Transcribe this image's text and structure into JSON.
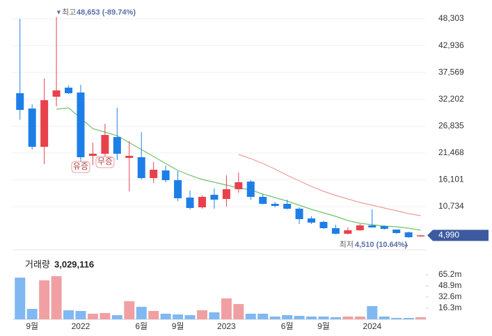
{
  "chart_data": [
    {
      "type": "candlestick",
      "open": [
        33418,
        30356,
        22705,
        32722,
        34530,
        33557,
        20896,
        21314,
        24653,
        20479,
        20618,
        16444,
        17974,
        16027,
        12548,
        10600,
        13105,
        12270,
        14218,
        15748,
        12687,
        11296,
        11296,
        10322,
        8374,
        7679,
        6427,
        5313,
        6009,
        6983,
        6844,
        6148,
        5592,
        4800
      ],
      "high": [
        48300,
        31190,
        36340,
        48653,
        34948,
        35087,
        23540,
        27296,
        30495,
        23818,
        25626,
        19643,
        18948,
        17835,
        13939,
        12966,
        14357,
        17000,
        17557,
        16027,
        13244,
        11714,
        12131,
        10600,
        8792,
        7957,
        7122,
        6566,
        7261,
        10183,
        6983,
        6148,
        5731,
        5100
      ],
      "low": [
        28130,
        22148,
        19226,
        30774,
        33279,
        19783,
        19087,
        20200,
        20061,
        13800,
        16166,
        15470,
        15609,
        11853,
        10183,
        10322,
        10322,
        10740,
        13522,
        12131,
        11157,
        10600,
        10183,
        7261,
        7261,
        6287,
        5174,
        5174,
        5870,
        6566,
        6148,
        5313,
        4510,
        4700
      ],
      "close": [
        30078,
        22705,
        32026,
        33974,
        33418,
        20618,
        21314,
        25070,
        21314,
        20896,
        16444,
        18113,
        16027,
        12409,
        10461,
        12687,
        12131,
        14218,
        15609,
        12687,
        11296,
        10879,
        10322,
        8235,
        7540,
        6427,
        5313,
        6009,
        6983,
        6566,
        6287,
        5453,
        4618,
        4990
      ],
      "up_color": "#e8414b",
      "down_color": "#1e7ee8",
      "moving_averages": [
        {
          "color": "#6cc36c",
          "values": [
            null,
            null,
            null,
            30217,
            30496,
            28409,
            26322,
            25626,
            24931,
            23539,
            22148,
            20757,
            19366,
            17974,
            16999,
            16166,
            15609,
            15053,
            14496,
            14079,
            13244,
            12548,
            11853,
            11018,
            10183,
            9487,
            8792,
            7957,
            7400,
            7122,
            6844,
            6705,
            6427,
            6009
          ]
        },
        {
          "color": "#f29a9a",
          "values": [
            null,
            null,
            null,
            null,
            null,
            null,
            null,
            null,
            null,
            null,
            null,
            null,
            null,
            null,
            null,
            null,
            null,
            null,
            21174,
            20339,
            19366,
            18253,
            16999,
            15887,
            14774,
            13800,
            12966,
            12270,
            11574,
            11018,
            10461,
            9905,
            9348,
            8931
          ]
        }
      ],
      "ylim": [
        2670,
        50670
      ],
      "yticks": [
        {
          "value": 48303,
          "label": "48,303"
        },
        {
          "value": 42936,
          "label": "42,936"
        },
        {
          "value": 37569,
          "label": "37,569"
        },
        {
          "value": 32202,
          "label": "32,202"
        },
        {
          "value": 26835,
          "label": "26,835"
        },
        {
          "value": 21468,
          "label": "21,468"
        },
        {
          "value": 16101,
          "label": "16,101"
        },
        {
          "value": 10734,
          "label": "10,734"
        }
      ],
      "grid": true,
      "high_label": "최고",
      "high_value": "48,653 (-89.74%)",
      "low_label": "최저",
      "low_value": "4,510 (10.64%)",
      "last_price": "4,990",
      "events": [
        "유증",
        "무증"
      ]
    },
    {
      "type": "bar",
      "title": "거래량",
      "current": "3,029,116",
      "categories": [
        null,
        "9월",
        null,
        null,
        null,
        "2022",
        null,
        null,
        null,
        null,
        "6월",
        null,
        null,
        "9월",
        null,
        null,
        null,
        "2023",
        null,
        null,
        null,
        null,
        "6월",
        null,
        null,
        "9월",
        null,
        null,
        null,
        "2024",
        null,
        null,
        null,
        null
      ],
      "values": [
        61100000,
        15300000,
        57100000,
        63200000,
        13200000,
        12200000,
        8200000,
        9200000,
        6100000,
        26500000,
        18300000,
        12200000,
        8200000,
        7100000,
        6100000,
        13200000,
        10200000,
        30600000,
        22400000,
        8200000,
        8200000,
        4100000,
        6100000,
        5100000,
        4100000,
        4100000,
        3100000,
        4100000,
        4100000,
        19400000,
        4100000,
        2000000,
        2000000,
        3029116
      ],
      "up_color": "#f0a0a3",
      "down_color": "#80b8f2",
      "ylim": [
        0,
        95800000
      ],
      "yticks": [
        {
          "value": 65200000,
          "label": "65.2m"
        },
        {
          "value": 48900000,
          "label": "48.9m"
        },
        {
          "value": 32600000,
          "label": "32.6m"
        },
        {
          "value": 16300000,
          "label": "16.3m"
        }
      ]
    }
  ]
}
